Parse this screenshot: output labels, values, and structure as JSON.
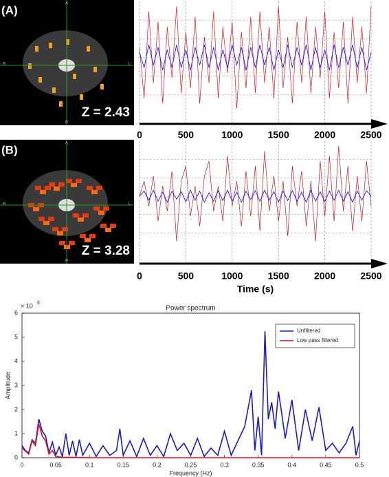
{
  "chart_data": [
    {
      "type": "line",
      "label": "(A)",
      "stat": "Z = 2.43",
      "orientation": [
        "A",
        "P",
        "R",
        "L"
      ],
      "x": [
        0,
        50,
        100,
        150,
        200,
        250,
        300,
        350,
        400,
        450,
        500,
        550,
        600,
        650,
        700,
        750,
        800,
        850,
        900,
        950,
        1000,
        1050,
        1100,
        1150,
        1200,
        1250,
        1300,
        1350,
        1400,
        1450,
        1500,
        1550,
        1600,
        1650,
        1700,
        1750,
        1800,
        1850,
        1900,
        1950,
        2000,
        2050,
        2100,
        2150,
        2200,
        2250,
        2300,
        2350,
        2400,
        2450,
        2500
      ],
      "xlim": [
        0,
        2500
      ],
      "xticks": [
        0,
        500,
        1000,
        1500,
        2000,
        2500
      ],
      "ylim": [
        -1.1,
        1.1
      ],
      "series": [
        {
          "color": "#e0141e",
          "values": [
            0.2,
            -0.8,
            0.9,
            -0.5,
            0.7,
            -0.9,
            0.6,
            -0.4,
            1.0,
            -0.7,
            0.5,
            -0.6,
            0.8,
            -0.9,
            0.4,
            -0.5,
            0.9,
            -0.8,
            0.6,
            -0.3,
            0.7,
            -1.0,
            0.5,
            -0.6,
            0.8,
            -0.7,
            0.9,
            -0.5,
            0.6,
            -0.8,
            1.0,
            -0.6,
            0.4,
            -0.9,
            0.7,
            -0.5,
            0.8,
            -0.7,
            0.6,
            -0.4,
            0.9,
            -0.8,
            0.5,
            -0.6,
            0.7,
            -0.9,
            0.8,
            -0.5,
            0.6,
            -0.7,
            1.0
          ]
        },
        {
          "color": "#1a1aff",
          "values": [
            0.1,
            -0.2,
            0.25,
            -0.15,
            0.2,
            -0.25,
            0.15,
            -0.2,
            0.25,
            -0.2,
            0.15,
            -0.25,
            0.2,
            -0.15,
            0.25,
            -0.2,
            0.2,
            -0.25,
            0.15,
            -0.2,
            0.25,
            -0.15,
            0.2,
            -0.25,
            0.2,
            -0.2,
            0.25,
            -0.15,
            0.2,
            -0.25,
            0.15,
            -0.2,
            0.25,
            -0.2,
            0.2,
            -0.15,
            0.25,
            -0.25,
            0.2,
            -0.2,
            0.15,
            -0.25,
            0.25,
            -0.2,
            0.2,
            -0.15,
            0.25,
            -0.2,
            0.2,
            -0.25,
            0.1
          ]
        }
      ]
    },
    {
      "type": "line",
      "label": "(B)",
      "stat": "Z = 3.28",
      "orientation": [
        "A",
        "P",
        "R",
        "L"
      ],
      "xlabel": "Time (s)",
      "x": [
        0,
        50,
        100,
        150,
        200,
        250,
        300,
        350,
        400,
        450,
        500,
        550,
        600,
        650,
        700,
        750,
        800,
        850,
        900,
        950,
        1000,
        1050,
        1100,
        1150,
        1200,
        1250,
        1300,
        1350,
        1400,
        1450,
        1500,
        1550,
        1600,
        1650,
        1700,
        1750,
        1800,
        1850,
        1900,
        1950,
        2000,
        2050,
        2100,
        2150,
        2200,
        2250,
        2300,
        2350,
        2400,
        2450,
        2500
      ],
      "xlim": [
        0,
        2500
      ],
      "xticks": [
        0,
        500,
        1000,
        1500,
        2000,
        2500
      ],
      "ylim": [
        -1.1,
        1.1
      ],
      "series": [
        {
          "color": "#c8141e",
          "values": [
            0,
            0.3,
            -0.2,
            0.4,
            -0.5,
            0.2,
            -0.3,
            0.5,
            -0.9,
            0.3,
            0.6,
            -0.4,
            0.2,
            -0.6,
            0.4,
            0.7,
            -0.3,
            0.2,
            -0.5,
            0.8,
            -0.2,
            0.3,
            -0.6,
            0.5,
            -0.4,
            0.6,
            -0.7,
            0.9,
            -0.3,
            0.4,
            -0.5,
            0.3,
            -0.8,
            0.6,
            -0.2,
            0.5,
            -0.6,
            0.3,
            -0.9,
            0.7,
            -0.4,
            0.8,
            -0.5,
            1.0,
            -0.3,
            0.6,
            -0.7,
            0.4,
            -0.5,
            0.7,
            -0.2
          ]
        },
        {
          "color": "#1a1aff",
          "values": [
            0,
            0.1,
            -0.08,
            0.12,
            -0.1,
            0.08,
            -0.12,
            0.1,
            -0.06,
            0.09,
            -0.11,
            0.12,
            -0.08,
            0.1,
            -0.12,
            0.07,
            -0.1,
            0.11,
            -0.09,
            0.12,
            -0.1,
            0.08,
            -0.12,
            0.1,
            -0.07,
            0.11,
            -0.1,
            0.12,
            -0.08,
            0.09,
            -0.12,
            0.1,
            -0.09,
            0.11,
            -0.1,
            0.08,
            -0.12,
            0.12,
            -0.1,
            0.09,
            -0.11,
            0.1,
            -0.08,
            0.12,
            -0.1,
            0.09,
            -0.12,
            0.1,
            -0.08,
            0.11,
            0
          ]
        }
      ]
    },
    {
      "type": "spectrum",
      "title": "Power spectrum",
      "xlabel": "Frequency (Hz)",
      "ylabel": "Amplitude",
      "y_scale": "× 10",
      "y_scale_exponent": "6",
      "xlim": [
        0,
        0.5
      ],
      "xticks": [
        0,
        0.05,
        0.1,
        0.15,
        0.2,
        0.25,
        0.3,
        0.35,
        0.4,
        0.45,
        0.5
      ],
      "ylim": [
        0,
        6
      ],
      "yticks": [
        0,
        1,
        2,
        3,
        4,
        5,
        6
      ],
      "legend": "upper right",
      "series": [
        {
          "name": "Unfiltered",
          "color": "#1a1acc",
          "x": [
            0,
            0.005,
            0.01,
            0.015,
            0.02,
            0.025,
            0.03,
            0.035,
            0.04,
            0.045,
            0.05,
            0.055,
            0.06,
            0.065,
            0.07,
            0.075,
            0.08,
            0.085,
            0.09,
            0.1,
            0.11,
            0.12,
            0.13,
            0.14,
            0.145,
            0.15,
            0.16,
            0.17,
            0.18,
            0.19,
            0.2,
            0.21,
            0.22,
            0.23,
            0.24,
            0.25,
            0.26,
            0.27,
            0.28,
            0.29,
            0.3,
            0.31,
            0.32,
            0.33,
            0.34,
            0.345,
            0.35,
            0.355,
            0.36,
            0.365,
            0.37,
            0.375,
            0.38,
            0.385,
            0.39,
            0.4,
            0.41,
            0.42,
            0.43,
            0.44,
            0.45,
            0.46,
            0.47,
            0.48,
            0.49,
            0.495,
            0.5
          ],
          "values": [
            0.5,
            0.3,
            0.2,
            0.75,
            0.6,
            1.6,
            1.1,
            0.9,
            0.2,
            0.65,
            0.1,
            0.45,
            0.05,
            1.0,
            0.1,
            0.7,
            0.05,
            0.75,
            0.1,
            0.6,
            0.05,
            0.5,
            0.1,
            0.3,
            1.2,
            0.1,
            0.7,
            0.05,
            0.8,
            0.1,
            0.5,
            0.05,
            1.0,
            0.3,
            0.6,
            0.1,
            0.8,
            0.05,
            0.4,
            0.1,
            1.1,
            0.1,
            0.7,
            1.3,
            2.8,
            0.3,
            1.7,
            0.1,
            5.25,
            1.6,
            2.3,
            1.2,
            2.75,
            1.8,
            0.8,
            2.4,
            0.3,
            2.0,
            0.7,
            2.1,
            0.3,
            0.6,
            0.2,
            0.6,
            1.3,
            0.1,
            0.7
          ]
        },
        {
          "name": "Low pass filtered",
          "color": "#e0141e",
          "x": [
            0,
            0.01,
            0.015,
            0.02,
            0.025,
            0.03,
            0.035,
            0.04,
            0.045,
            0.05,
            0.06,
            0.08,
            0.1,
            0.5
          ],
          "values": [
            0.4,
            0.15,
            0.7,
            0.5,
            1.4,
            0.9,
            0.7,
            0.15,
            0.3,
            0.05,
            0.02,
            0.01,
            0,
            0
          ]
        }
      ]
    }
  ]
}
